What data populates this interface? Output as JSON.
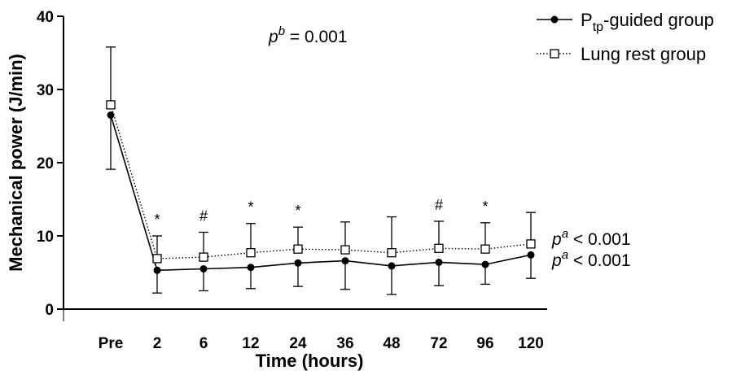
{
  "chart_data": {
    "type": "line",
    "xlabel": "Time (hours)",
    "ylabel": "Mechanical power (J/min)",
    "categories": [
      "Pre",
      "2",
      "6",
      "12",
      "24",
      "36",
      "48",
      "72",
      "96",
      "120"
    ],
    "ylim": [
      0,
      40
    ],
    "yticks": [
      0,
      10,
      20,
      30,
      40
    ],
    "series": [
      {
        "name": "Ptp-guided group",
        "legend_main": "P",
        "legend_sub": "tp",
        "legend_rest": "-guided group",
        "marker": "filled-circle",
        "line_style": "solid",
        "values": [
          26.5,
          5.3,
          5.5,
          5.7,
          6.3,
          6.6,
          5.9,
          6.4,
          6.1,
          7.4
        ],
        "error_low": [
          19.1,
          2.2,
          2.5,
          2.8,
          3.1,
          2.7,
          2.0,
          3.2,
          3.4,
          4.2
        ]
      },
      {
        "name": "Lung rest group",
        "legend_main": "Lung rest group",
        "marker": "open-square",
        "line_style": "dotted",
        "values": [
          27.9,
          6.9,
          7.1,
          7.7,
          8.2,
          8.1,
          7.7,
          8.3,
          8.2,
          8.9
        ],
        "error_high": [
          35.8,
          10.0,
          10.5,
          11.7,
          11.2,
          11.9,
          12.6,
          12.0,
          11.8,
          13.2
        ]
      }
    ],
    "significance_marks": [
      {
        "category": "2",
        "symbol": "*"
      },
      {
        "category": "6",
        "symbol": "#"
      },
      {
        "category": "12",
        "symbol": "*"
      },
      {
        "category": "24",
        "symbol": "*"
      },
      {
        "category": "72",
        "symbol": "#"
      },
      {
        "category": "96",
        "symbol": "*"
      }
    ],
    "annotations": {
      "overall": {
        "p": "p",
        "sup": "b",
        "text": " = 0.001"
      },
      "lung_rest": {
        "p": "p",
        "sup": "a",
        "text": " < 0.001"
      },
      "ptp_guided": {
        "p": "p",
        "sup": "a",
        "text": " < 0.001"
      }
    }
  }
}
